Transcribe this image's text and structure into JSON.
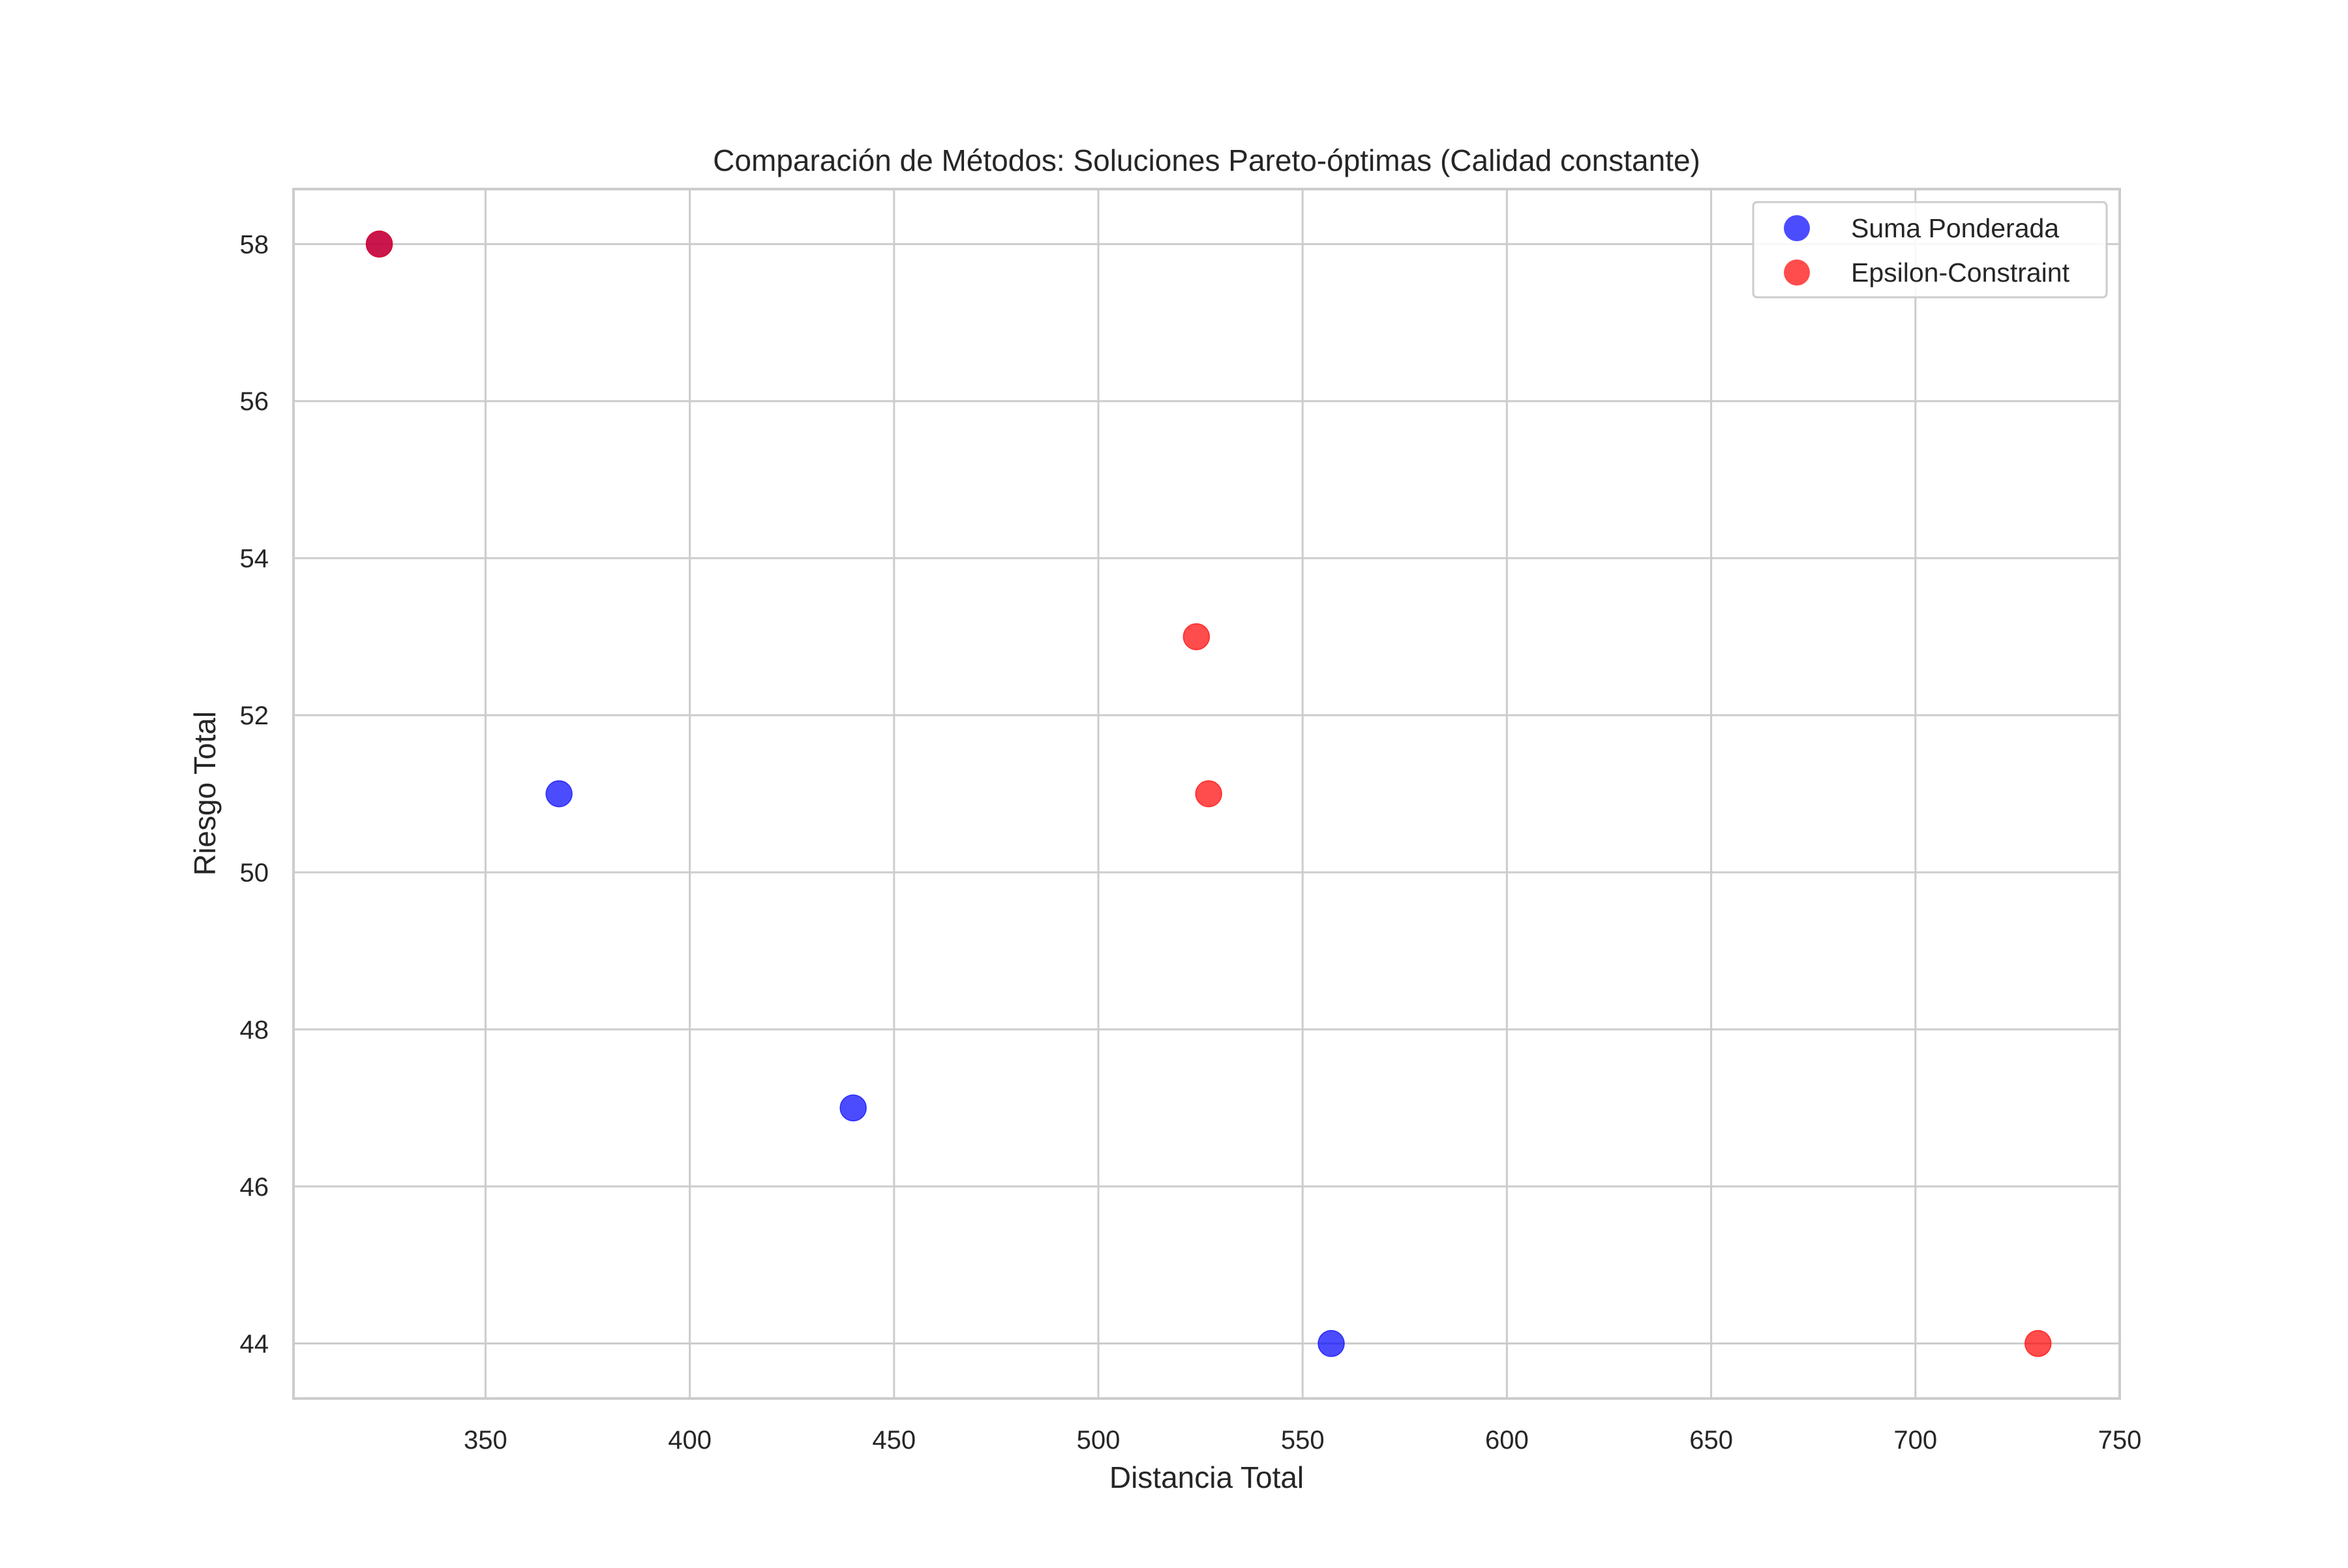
{
  "chart_data": {
    "type": "scatter",
    "title": "Comparación de Métodos: Soluciones Pareto-óptimas (Calidad constante)",
    "xlabel": "Distancia Total",
    "ylabel": "Riesgo Total",
    "xlim": [
      303,
      750
    ],
    "ylim": [
      43.3,
      58.7
    ],
    "xticks": [
      350,
      400,
      450,
      500,
      550,
      600,
      650,
      700,
      750
    ],
    "yticks": [
      44,
      46,
      48,
      50,
      52,
      54,
      56,
      58
    ],
    "grid": true,
    "legend_position": "top-right",
    "series": [
      {
        "name": "Suma Ponderada",
        "color": "#0000ff",
        "points": [
          {
            "x": 324,
            "y": 58
          },
          {
            "x": 368,
            "y": 51
          },
          {
            "x": 440,
            "y": 47
          },
          {
            "x": 557,
            "y": 44
          }
        ]
      },
      {
        "name": "Epsilon-Constraint",
        "color": "#ff0000",
        "points": [
          {
            "x": 324,
            "y": 58
          },
          {
            "x": 524,
            "y": 53
          },
          {
            "x": 527,
            "y": 51
          },
          {
            "x": 730,
            "y": 44
          }
        ]
      }
    ]
  }
}
